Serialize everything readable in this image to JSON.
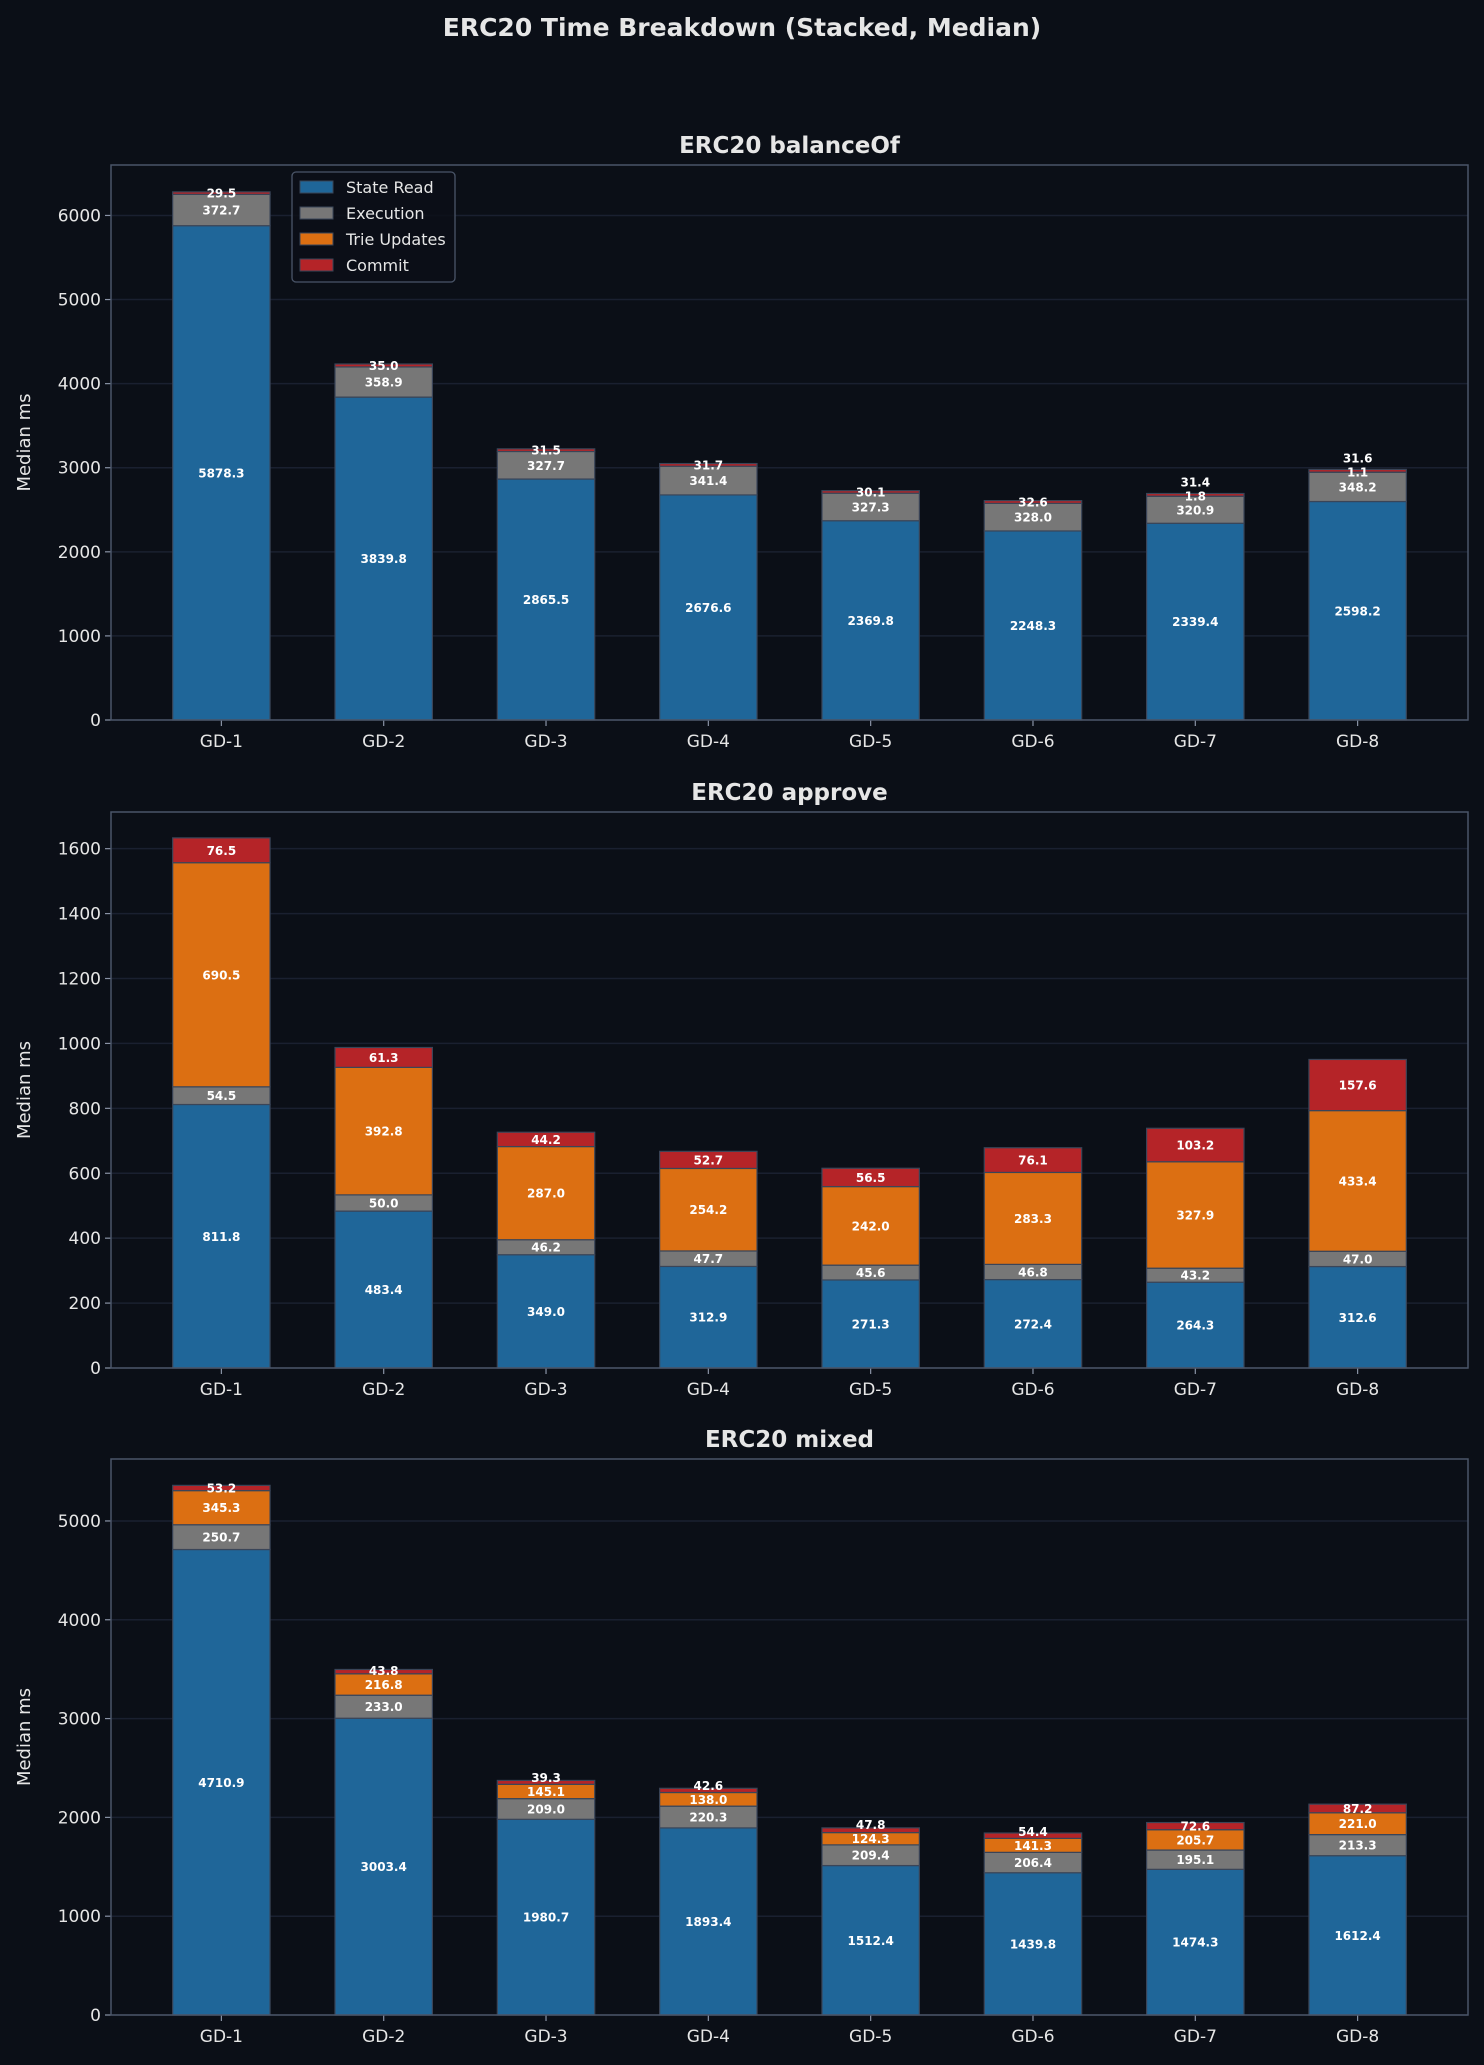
{
  "title": "ERC20 Time Breakdown (Stacked, Median)",
  "colors": {
    "State Read": "#1f6699",
    "Execution": "#777777",
    "Trie Updates": "#dc6f12",
    "Commit": "#b52428",
    "background": "#0b0f17",
    "text": "#e6e6e6"
  },
  "chart_data": [
    {
      "type": "bar",
      "stacked": true,
      "title": "ERC20 balanceOf",
      "xlabel": "",
      "ylabel": "Median ms",
      "categories": [
        "GD-1",
        "GD-2",
        "GD-3",
        "GD-4",
        "GD-5",
        "GD-6",
        "GD-7",
        "GD-8"
      ],
      "ylim": [
        0,
        6600
      ],
      "yticks": [
        0,
        1000,
        2000,
        3000,
        4000,
        5000,
        6000
      ],
      "grid": true,
      "legend": "top-left",
      "series": [
        {
          "name": "State Read",
          "values": [
            5878.3,
            3839.8,
            2865.5,
            2676.6,
            2369.8,
            2248.3,
            2339.4,
            2598.2
          ]
        },
        {
          "name": "Execution",
          "values": [
            372.7,
            358.9,
            327.7,
            341.4,
            327.3,
            328.0,
            320.9,
            348.2
          ]
        },
        {
          "name": "Trie Updates",
          "values": [
            0,
            0,
            0,
            0,
            0,
            0,
            1.8,
            1.1
          ]
        },
        {
          "name": "Commit",
          "values": [
            29.5,
            35.0,
            31.5,
            31.7,
            30.1,
            32.6,
            31.4,
            31.6
          ]
        }
      ]
    },
    {
      "type": "bar",
      "stacked": true,
      "title": "ERC20 approve",
      "xlabel": "",
      "ylabel": "Median ms",
      "categories": [
        "GD-1",
        "GD-2",
        "GD-3",
        "GD-4",
        "GD-5",
        "GD-6",
        "GD-7",
        "GD-8"
      ],
      "ylim": [
        0,
        1713
      ],
      "yticks": [
        0,
        200,
        400,
        600,
        800,
        1000,
        1200,
        1400,
        1600
      ],
      "grid": true,
      "series": [
        {
          "name": "State Read",
          "values": [
            811.8,
            483.4,
            349.0,
            312.9,
            271.3,
            272.4,
            264.3,
            312.6
          ]
        },
        {
          "name": "Execution",
          "values": [
            54.5,
            50.0,
            46.2,
            47.7,
            45.6,
            46.8,
            43.2,
            47.0
          ]
        },
        {
          "name": "Trie Updates",
          "values": [
            690.5,
            392.8,
            287.0,
            254.2,
            242.0,
            283.3,
            327.9,
            433.4
          ]
        },
        {
          "name": "Commit",
          "values": [
            76.5,
            61.3,
            44.2,
            52.7,
            56.5,
            76.1,
            103.2,
            157.6
          ]
        }
      ]
    },
    {
      "type": "bar",
      "stacked": true,
      "title": "ERC20 mixed",
      "xlabel": "",
      "ylabel": "Median ms",
      "categories": [
        "GD-1",
        "GD-2",
        "GD-3",
        "GD-4",
        "GD-5",
        "GD-6",
        "GD-7",
        "GD-8"
      ],
      "ylim": [
        0,
        5627
      ],
      "yticks": [
        0,
        1000,
        2000,
        3000,
        4000,
        5000
      ],
      "grid": true,
      "series": [
        {
          "name": "State Read",
          "values": [
            4710.9,
            3003.4,
            1980.7,
            1893.4,
            1512.4,
            1439.8,
            1474.3,
            1612.4
          ]
        },
        {
          "name": "Execution",
          "values": [
            250.7,
            233.0,
            209.0,
            220.3,
            209.4,
            206.4,
            195.1,
            213.3
          ]
        },
        {
          "name": "Trie Updates",
          "values": [
            345.3,
            216.8,
            145.1,
            138.0,
            124.3,
            141.3,
            205.7,
            221.0
          ]
        },
        {
          "name": "Commit",
          "values": [
            53.2,
            43.8,
            39.3,
            42.6,
            47.8,
            54.4,
            72.6,
            87.2
          ]
        }
      ]
    }
  ]
}
